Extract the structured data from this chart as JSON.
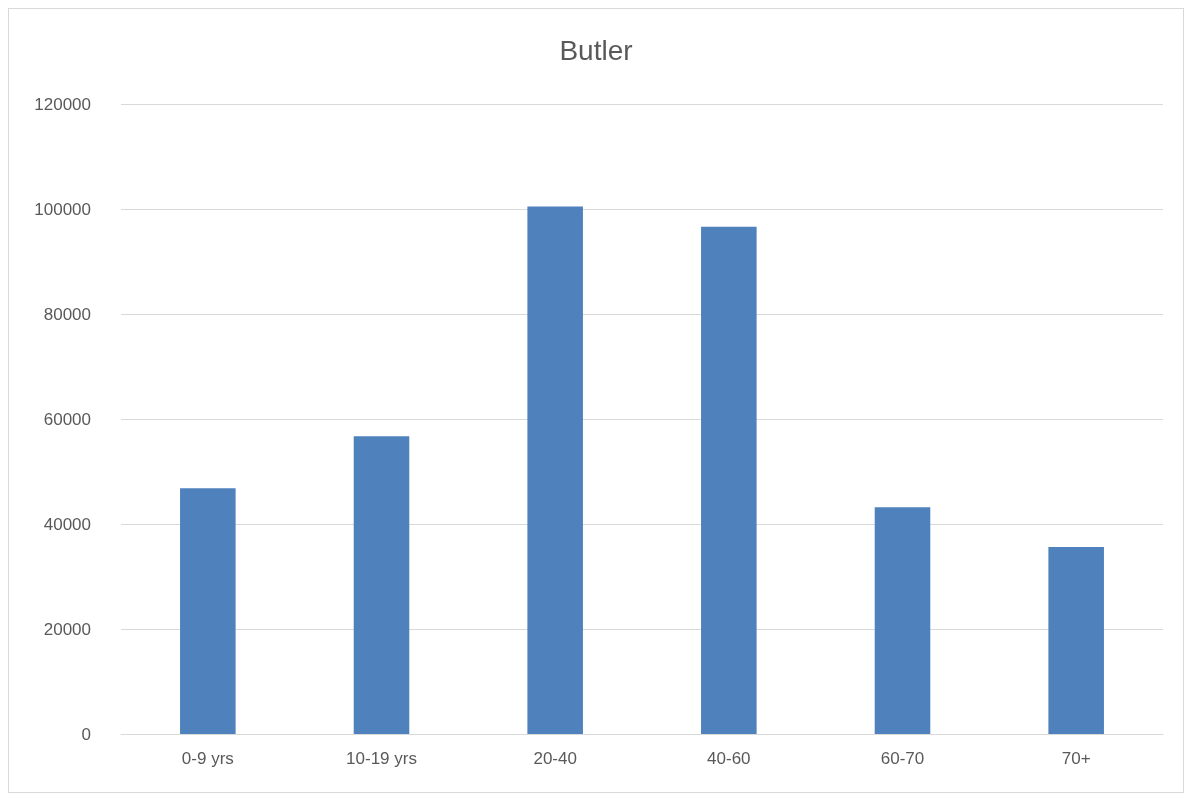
{
  "chart_data": {
    "type": "bar",
    "title": "Butler",
    "categories": [
      "0-9 yrs",
      "10-19 yrs",
      "20-40",
      "40-60",
      "60-70",
      "70+"
    ],
    "values": [
      46800,
      56700,
      100500,
      96600,
      43200,
      35600
    ],
    "color": "#4f81bd",
    "ylim": [
      0,
      120000
    ],
    "yticks": [
      0,
      20000,
      40000,
      60000,
      80000,
      100000,
      120000
    ],
    "grid": "y"
  }
}
